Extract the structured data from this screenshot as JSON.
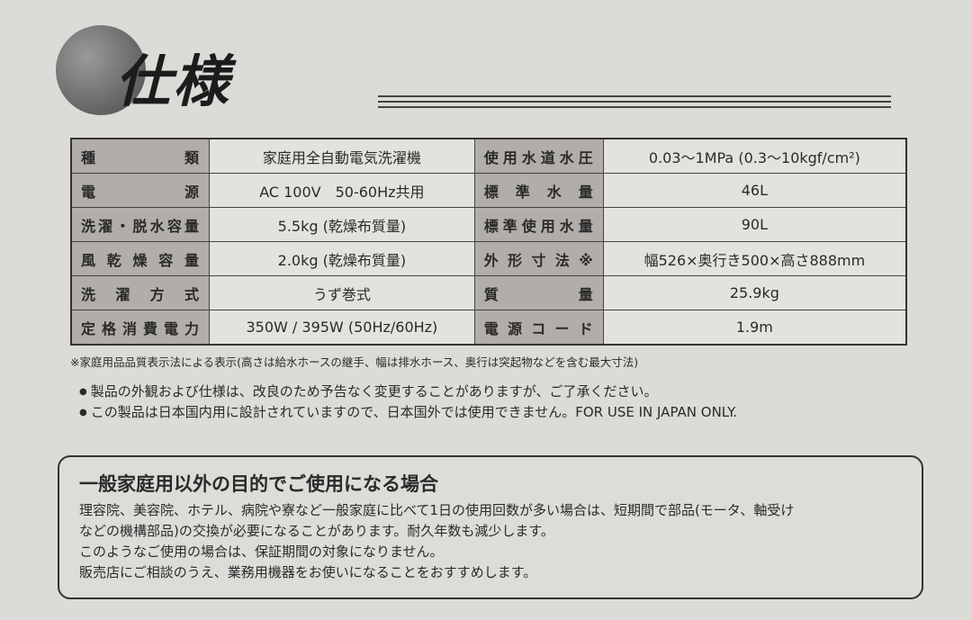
{
  "header": {
    "title": "仕様"
  },
  "table": {
    "rows": [
      [
        "種類",
        "家庭用全自動電気洗濯機",
        "使用水道水圧",
        "0.03〜1MPa (0.3〜10kgf/cm²)"
      ],
      [
        "電源",
        "AC 100V　50-60Hz共用",
        "標準水量",
        "46L"
      ],
      [
        "洗濯・脱水容量",
        "5.5kg (乾燥布質量)",
        "標準使用水量",
        "90L"
      ],
      [
        "風乾燥容量",
        "2.0kg (乾燥布質量)",
        "外形寸法※",
        "幅526×奥行き500×高さ888mm"
      ],
      [
        "洗濯方式",
        "うず巻式",
        "質量",
        "25.9kg"
      ],
      [
        "定格消費電力",
        "350W / 395W (50Hz/60Hz)",
        "電源コード",
        "1.9m"
      ]
    ]
  },
  "footnote": "※家庭用品品質表示法による表示(高さは給水ホースの継手、幅は排水ホース、奥行は突起物などを含む最大寸法)",
  "notes": [
    "製品の外観および仕様は、改良のため予告なく変更することがありますが、ご了承ください。",
    "この製品は日本国内用に設計されていますので、日本国外では使用できません。FOR USE IN JAPAN ONLY."
  ],
  "box": {
    "title": "一般家庭用以外の目的でご使用になる場合",
    "lines": [
      "理容院、美容院、ホテル、病院や寮など一般家庭に比べて1日の使用回数が多い場合は、短期間で部品(モータ、軸受け",
      "などの機構部品)の交換が必要になることがあります。耐久年数も減少します。",
      "このようなご使用の場合は、保証期間の対象になりません。",
      "販売店にご相談のうえ、業務用機器をお使いになることをおすすめします。"
    ]
  }
}
